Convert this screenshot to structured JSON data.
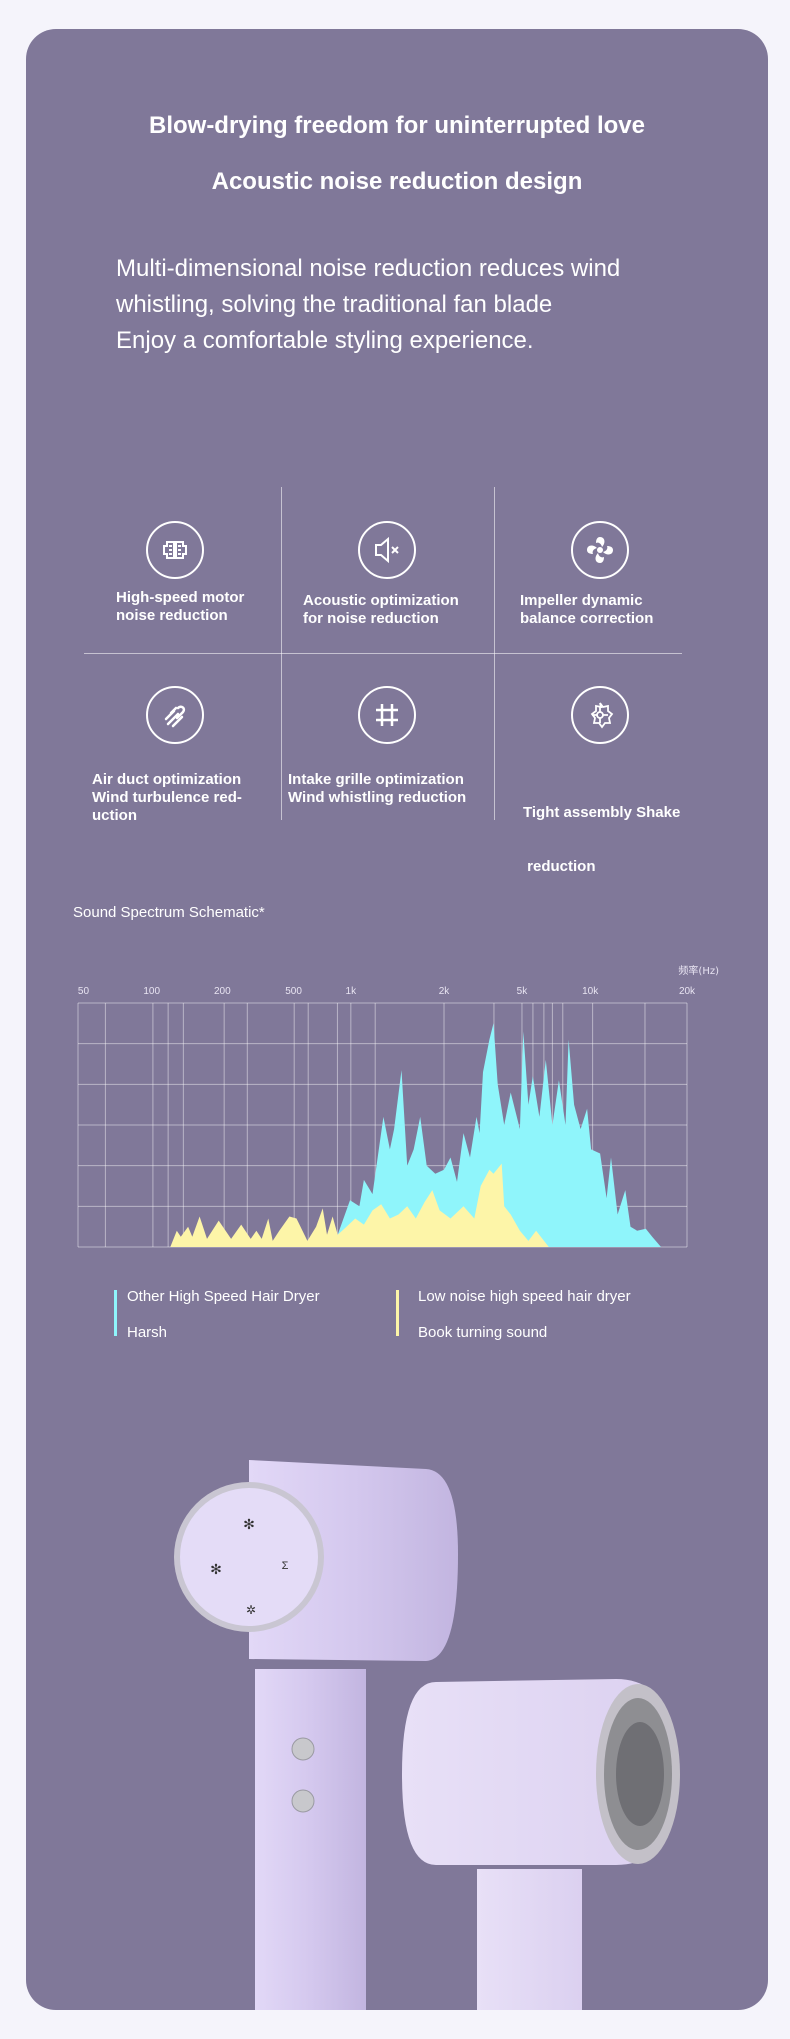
{
  "header": {
    "title": "Blow-drying freedom for uninterrupted love",
    "subtitle": "Acoustic noise reduction design",
    "description": [
      "Multi-dimensional noise reduction reduces wind",
      "whistling, solving the traditional fan blade",
      "Enjoy a comfortable styling experience."
    ]
  },
  "features": [
    {
      "icon": "motor-icon",
      "lines": [
        "High-speed motor",
        "noise reduction"
      ]
    },
    {
      "icon": "speaker-mute-icon",
      "lines": [
        "Acoustic optimization",
        "for noise reduction"
      ]
    },
    {
      "icon": "impeller-icon",
      "lines": [
        "Impeller dynamic",
        "balance correction"
      ]
    },
    {
      "icon": "air-duct-icon",
      "lines": [
        "Air duct optimization",
        "Wind turbulence red-",
        "uction"
      ]
    },
    {
      "icon": "grille-icon",
      "lines": [
        "Intake grille optimization",
        "Wind whistling reduction"
      ]
    },
    {
      "icon": "assembly-icon",
      "lines": [
        "Tight assembly Shake",
        " reduction"
      ]
    }
  ],
  "chart_data": {
    "type": "area",
    "title": "Sound Spectrum Schematic*",
    "xlabel": "频率(Hz)",
    "ylabel": "",
    "x_ticks": [
      50,
      100,
      200,
      500,
      1000,
      2000,
      5000,
      10000,
      20000
    ],
    "x_tick_labels": [
      "50",
      "100",
      "200",
      "500",
      "1k",
      "2k",
      "5k",
      "10k",
      "20k"
    ],
    "ylim": [
      0,
      6
    ],
    "grid": true,
    "series": [
      {
        "name": "Other High Speed Hair Dryer",
        "note": "Harsh",
        "color": "#8ff5fb",
        "points": [
          [
            853,
            0.3
          ],
          [
            990,
            1.15
          ],
          [
            1066,
            1.0
          ],
          [
            1102,
            1.65
          ],
          [
            1175,
            1.3
          ],
          [
            1274,
            3.2
          ],
          [
            1337,
            2.4
          ],
          [
            1380,
            2.9
          ],
          [
            1458,
            4.35
          ],
          [
            1521,
            2.0
          ],
          [
            1596,
            2.4
          ],
          [
            1675,
            3.2
          ],
          [
            1758,
            2.0
          ],
          [
            1875,
            1.8
          ],
          [
            2000,
            1.9
          ],
          [
            2158,
            2.2
          ],
          [
            2330,
            1.6
          ],
          [
            2516,
            2.8
          ],
          [
            2714,
            2.2
          ],
          [
            2930,
            3.2
          ],
          [
            3040,
            2.8
          ],
          [
            3163,
            4.3
          ],
          [
            3410,
            5.1
          ],
          [
            3580,
            5.5
          ],
          [
            3760,
            4.0
          ],
          [
            4060,
            3.0
          ],
          [
            4380,
            3.8
          ],
          [
            4880,
            2.9
          ],
          [
            5070,
            5.3
          ],
          [
            5340,
            3.5
          ],
          [
            5580,
            4.2
          ],
          [
            5970,
            3.2
          ],
          [
            6370,
            4.6
          ],
          [
            6810,
            3.0
          ],
          [
            7280,
            4.1
          ],
          [
            7780,
            3.0
          ],
          [
            8030,
            5.1
          ],
          [
            8490,
            3.5
          ],
          [
            9075,
            2.9
          ],
          [
            9690,
            3.4
          ],
          [
            10070,
            2.4
          ],
          [
            10740,
            2.3
          ],
          [
            11250,
            1.2
          ],
          [
            11610,
            2.2
          ],
          [
            12170,
            0.8
          ],
          [
            12860,
            1.4
          ],
          [
            13350,
            0.5
          ],
          [
            13990,
            0.4
          ],
          [
            14890,
            0.45
          ],
          [
            15590,
            0.25
          ],
          [
            16600,
            0
          ]
        ]
      },
      {
        "name": "Low noise high speed hair dryer",
        "note": "Book turning sound",
        "color": "#fdf5a8",
        "points": [
          [
            120,
            0
          ],
          [
            128,
            0.4
          ],
          [
            133,
            0.25
          ],
          [
            143,
            0.5
          ],
          [
            149,
            0.25
          ],
          [
            160,
            0.75
          ],
          [
            172,
            0.2
          ],
          [
            193,
            0.65
          ],
          [
            224,
            0.2
          ],
          [
            255,
            0.55
          ],
          [
            288,
            0.2
          ],
          [
            310,
            0.4
          ],
          [
            332,
            0.2
          ],
          [
            361,
            0.7
          ],
          [
            382,
            0.15
          ],
          [
            416,
            0.4
          ],
          [
            474,
            0.75
          ],
          [
            518,
            0.7
          ],
          [
            591,
            0.15
          ],
          [
            657,
            0.5
          ],
          [
            711,
            0.95
          ],
          [
            749,
            0.3
          ],
          [
            802,
            0.75
          ],
          [
            853,
            0.3
          ],
          [
            949,
            0.5
          ],
          [
            1033,
            0.7
          ],
          [
            1102,
            0.55
          ],
          [
            1175,
            0.9
          ],
          [
            1253,
            1.05
          ],
          [
            1337,
            0.7
          ],
          [
            1426,
            0.8
          ],
          [
            1521,
            1.0
          ],
          [
            1622,
            0.7
          ],
          [
            1730,
            1.1
          ],
          [
            1833,
            1.4
          ],
          [
            1936,
            0.9
          ],
          [
            2158,
            0.7
          ],
          [
            2516,
            1.0
          ],
          [
            2856,
            0.7
          ],
          [
            3080,
            1.5
          ],
          [
            3410,
            1.9
          ],
          [
            3580,
            1.8
          ],
          [
            3940,
            2.05
          ],
          [
            4060,
            1.0
          ],
          [
            4380,
            0.8
          ],
          [
            4880,
            0.4
          ],
          [
            5340,
            0.15
          ],
          [
            5770,
            0.4
          ],
          [
            6570,
            0
          ]
        ]
      }
    ],
    "legend_placement": "bottom"
  },
  "colors": {
    "background": "#807899",
    "page": "#f5f4fb",
    "cyan": "#8ff5fb",
    "yellow": "#fdf5a8"
  }
}
